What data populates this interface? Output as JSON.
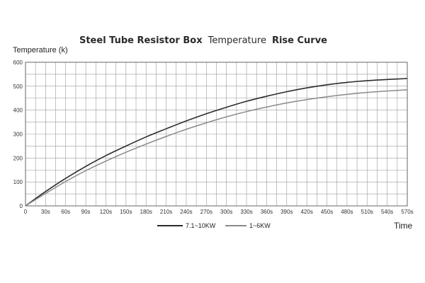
{
  "chart_data": {
    "type": "line",
    "title_parts": [
      {
        "text": "Steel Tube Resistor Box",
        "weight": "bold"
      },
      {
        "text": "Temperature",
        "weight": "normal"
      },
      {
        "text": "Rise Curve",
        "weight": "bold"
      }
    ],
    "ylabel": "Temperature (k)",
    "xlabel": "Time",
    "x": [
      0,
      30,
      60,
      90,
      120,
      150,
      180,
      210,
      240,
      270,
      300,
      330,
      360,
      390,
      420,
      450,
      480,
      510,
      540,
      570
    ],
    "x_tick_labels": [
      "0",
      "30s",
      "60s",
      "90s",
      "120s",
      "150s",
      "180s",
      "210s",
      "240s",
      "270s",
      "300s",
      "330s",
      "360s",
      "390s",
      "420s",
      "450s",
      "480s",
      "510s",
      "540s",
      "570s"
    ],
    "xlim": [
      0,
      570
    ],
    "y_ticks": [
      0,
      100,
      200,
      300,
      400,
      500,
      600
    ],
    "ylim": [
      0,
      600
    ],
    "grid": true,
    "legend_position": "bottom",
    "series": [
      {
        "name": "7.1~10KW",
        "color": "#2b2b2b",
        "values": [
          0,
          60,
          115,
          165,
          210,
          250,
          288,
          322,
          355,
          385,
          412,
          437,
          458,
          477,
          493,
          506,
          516,
          523,
          528,
          532
        ]
      },
      {
        "name": "1~6KW",
        "color": "#8a8a8a",
        "values": [
          0,
          52,
          102,
          147,
          187,
          224,
          258,
          290,
          320,
          347,
          372,
          394,
          413,
          430,
          444,
          456,
          466,
          474,
          480,
          485
        ]
      }
    ]
  }
}
